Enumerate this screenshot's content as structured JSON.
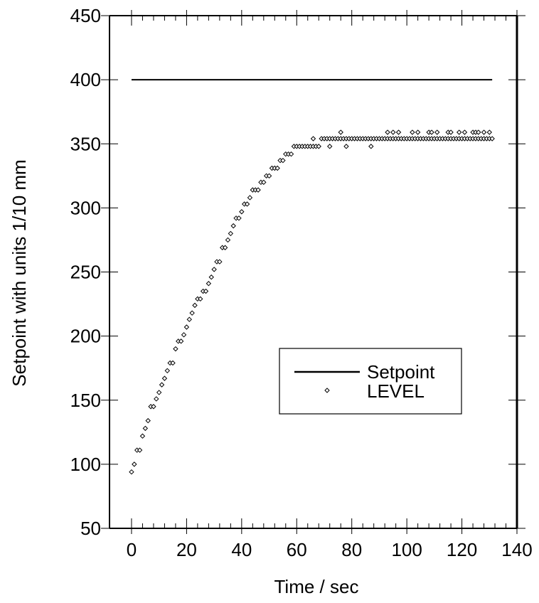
{
  "chart_data": {
    "type": "scatter",
    "title": "",
    "xlabel": "Time / sec",
    "ylabel": "Setpoint with units 1/10 mm",
    "xlim": [
      -8,
      140
    ],
    "ylim": [
      50,
      450
    ],
    "x_ticks": [
      0,
      20,
      40,
      60,
      80,
      100,
      120,
      140
    ],
    "y_ticks": [
      50,
      100,
      150,
      200,
      250,
      300,
      350,
      400,
      450
    ],
    "grid": false,
    "legend_position": "center-right",
    "series": [
      {
        "name": "Setpoint",
        "style": "line",
        "color": "#000000",
        "x": [
          0,
          131
        ],
        "y": [
          400,
          400
        ]
      },
      {
        "name": "LEVEL",
        "style": "marker",
        "marker": "diamond",
        "color": "#000000",
        "x": [
          0,
          1,
          2,
          3,
          4,
          5,
          6,
          7,
          8,
          9,
          10,
          11,
          12,
          13,
          14,
          15,
          16,
          17,
          18,
          19,
          20,
          21,
          22,
          23,
          24,
          25,
          26,
          27,
          28,
          29,
          30,
          31,
          32,
          33,
          34,
          35,
          36,
          37,
          38,
          39,
          40,
          41,
          42,
          43,
          44,
          45,
          46,
          47,
          48,
          49,
          50,
          51,
          52,
          53,
          54,
          55,
          56,
          57,
          58,
          59,
          60,
          61,
          62,
          63,
          64,
          65,
          66,
          67,
          68,
          69,
          70,
          71,
          72,
          73,
          74,
          75,
          76,
          77,
          78,
          79,
          80,
          81,
          82,
          83,
          84,
          85,
          86,
          87,
          88,
          89,
          90,
          91,
          92,
          93,
          94,
          95,
          96,
          97,
          98,
          99,
          100,
          101,
          102,
          103,
          104,
          105,
          106,
          107,
          108,
          109,
          110,
          111,
          112,
          113,
          114,
          115,
          116,
          117,
          118,
          119,
          120,
          121,
          122,
          123,
          124,
          125,
          126,
          127,
          128,
          129,
          130,
          131
        ],
        "y": [
          94,
          100,
          111,
          111,
          122,
          128,
          134,
          145,
          145,
          151,
          156,
          162,
          167,
          173,
          179,
          179,
          190,
          196,
          196,
          201,
          207,
          213,
          218,
          224,
          229,
          229,
          235,
          235,
          241,
          246,
          252,
          258,
          258,
          269,
          269,
          275,
          280,
          286,
          292,
          292,
          297,
          303,
          303,
          308,
          314,
          314,
          314,
          320,
          320,
          325,
          325,
          331,
          331,
          331,
          337,
          337,
          342,
          342,
          342,
          348,
          348,
          348,
          348,
          348,
          348,
          348,
          348,
          348,
          348,
          354,
          354,
          354,
          354,
          354,
          354,
          354,
          354,
          354,
          354,
          354,
          354,
          354,
          354,
          354,
          354,
          354,
          354,
          354,
          354,
          354,
          354,
          354,
          354,
          354,
          354,
          354,
          354,
          354,
          354,
          354,
          354,
          354,
          354,
          354,
          354,
          354,
          354,
          354,
          354,
          354,
          354,
          354,
          354,
          354,
          354,
          354,
          354,
          354,
          354,
          354,
          354,
          354,
          354,
          354,
          354,
          354,
          354,
          354,
          354,
          354,
          354,
          354
        ],
        "x_extra": [
          66,
          72,
          76,
          78,
          87,
          93,
          95,
          97,
          102,
          104,
          108,
          109,
          111,
          115,
          116,
          119,
          121,
          124,
          125,
          126,
          128,
          130
        ],
        "y_extra": [
          354,
          348,
          359,
          348,
          348,
          359,
          359,
          359,
          359,
          359,
          359,
          359,
          359,
          359,
          359,
          359,
          359,
          359,
          359,
          359,
          359,
          359
        ]
      }
    ]
  }
}
